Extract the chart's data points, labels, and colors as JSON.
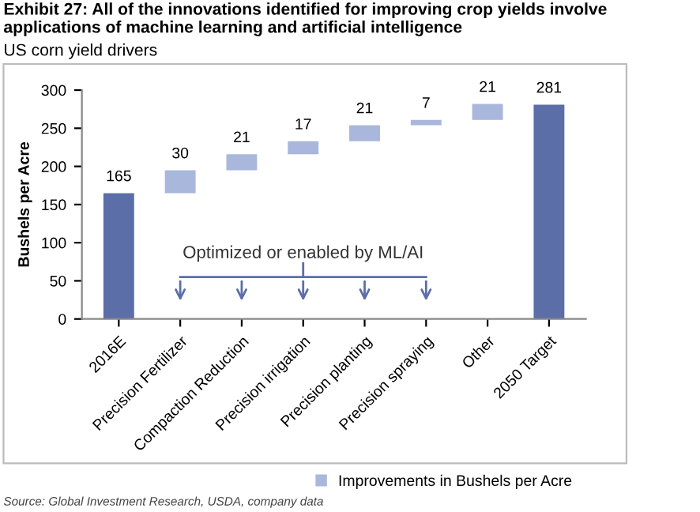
{
  "chart_data": {
    "type": "bar",
    "title": "Exhibit 27: All of the innovations identified for improving crop yields involve applications of machine learning and artificial intelligence",
    "subtitle": "US corn yield drivers",
    "ylabel": "Bushels per Acre",
    "categories": [
      "2016E",
      "Precision Fertilizer",
      "Compaction Reduction",
      "Precision irrigation",
      "Precision planting",
      "Precision spraying",
      "Other",
      "2050 Target"
    ],
    "series": [
      {
        "name": "Improvements in Bushels per Acre",
        "color": "#a9b7dc",
        "colors": [
          "#5b6ea8",
          "#a9b7dc",
          "#a9b7dc",
          "#a9b7dc",
          "#a9b7dc",
          "#a9b7dc",
          "#a9b7dc",
          "#5b6ea8"
        ],
        "values": [
          165,
          30,
          21,
          17,
          21,
          7,
          21,
          281
        ],
        "base": [
          0,
          165,
          195,
          216,
          233,
          254,
          261,
          0
        ]
      }
    ],
    "ylim": [
      0,
      300
    ],
    "yticks": [
      0,
      50,
      100,
      150,
      200,
      250,
      300
    ],
    "grid": false,
    "legend": "bottom right",
    "data_labels": true,
    "annotations": [
      "Optimized or enabled by ML/AI",
      "Source: Global Investment Research, USDA, company data"
    ]
  }
}
